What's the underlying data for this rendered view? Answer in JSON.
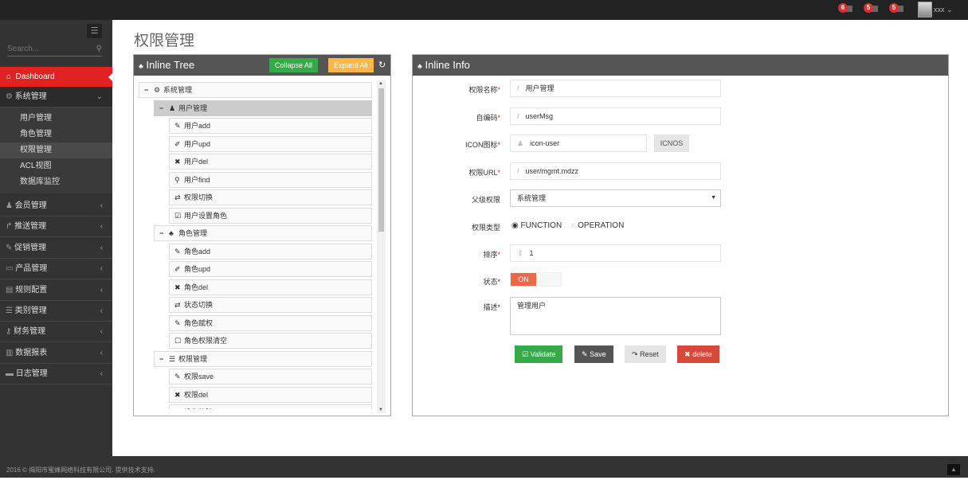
{
  "topbar": {
    "badges": [
      {
        "count": "6",
        "icon": "bell-icon"
      },
      {
        "count": "5",
        "icon": "envelope-icon"
      },
      {
        "count": "5",
        "icon": "tasks-icon"
      }
    ],
    "user": "xxx"
  },
  "sidebar": {
    "search_placeholder": "Search...",
    "dashboard": "Dashboard",
    "system": {
      "label": "系统管理",
      "icon": "cogs-icon",
      "children": [
        "用户管理",
        "角色管理",
        "权限管理",
        "ACL视图",
        "数据库监控"
      ],
      "active": "权限管理"
    },
    "menus": [
      {
        "label": "会员管理",
        "icon": "user-icon"
      },
      {
        "label": "推送管理",
        "icon": "share-icon"
      },
      {
        "label": "促销管理",
        "icon": "pencil-icon"
      },
      {
        "label": "产品管理",
        "icon": "inbox-icon"
      },
      {
        "label": "规则配置",
        "icon": "list-alt-icon"
      },
      {
        "label": "类别管理",
        "icon": "list-icon"
      },
      {
        "label": "财务管理",
        "icon": "key-icon"
      },
      {
        "label": "数据报表",
        "icon": "bar-chart-icon"
      },
      {
        "label": "日志管理",
        "icon": "credit-card-icon"
      }
    ]
  },
  "page": {
    "title": "权限管理"
  },
  "tree_panel": {
    "title": "Inline Tree",
    "collapse": "Collapse All",
    "expand": "Expand All",
    "nodes": [
      {
        "level": 0,
        "label": "系统管理",
        "icon": "cogs-icon",
        "toggle": "−"
      },
      {
        "level": 1,
        "label": "用户管理",
        "icon": "user-icon",
        "toggle": "−",
        "selected": true
      },
      {
        "level": 2,
        "label": "用户add",
        "icon": "pencil-icon"
      },
      {
        "level": 2,
        "label": "用户upd",
        "icon": "edit-icon"
      },
      {
        "level": 2,
        "label": "用户del",
        "icon": "times-icon"
      },
      {
        "level": 2,
        "label": "用户find",
        "icon": "search-icon"
      },
      {
        "level": 2,
        "label": "权限切换",
        "icon": "retweet-icon"
      },
      {
        "level": 2,
        "label": "用户设置角色",
        "icon": "check-square-icon"
      },
      {
        "level": 1,
        "label": "角色管理",
        "icon": "sitemap-icon",
        "toggle": "−"
      },
      {
        "level": 2,
        "label": "角色add",
        "icon": "pencil-icon"
      },
      {
        "level": 2,
        "label": "角色upd",
        "icon": "edit-icon"
      },
      {
        "level": 2,
        "label": "角色del",
        "icon": "times-icon"
      },
      {
        "level": 2,
        "label": "状态切换",
        "icon": "retweet-icon"
      },
      {
        "level": 2,
        "label": "角色赋权",
        "icon": "pencil-icon"
      },
      {
        "level": 2,
        "label": "角色权限清空",
        "icon": "square-icon"
      },
      {
        "level": 1,
        "label": "权限管理",
        "icon": "list-icon",
        "toggle": "−"
      },
      {
        "level": 2,
        "label": "权限save",
        "icon": "pencil-icon"
      },
      {
        "level": 2,
        "label": "权限del",
        "icon": "times-icon"
      },
      {
        "level": 2,
        "label": "操作校验",
        "icon": "edit-icon"
      }
    ]
  },
  "info_panel": {
    "title": "Inline Info",
    "fields": {
      "name": {
        "label": "权限名称",
        "value": "用户管理"
      },
      "code": {
        "label": "自编码",
        "value": "userMsg"
      },
      "icon": {
        "label": "ICON图标",
        "value": "icon-user",
        "button": "ICNOS"
      },
      "url": {
        "label": "权限URL",
        "value": "user/mgmt.mdzz"
      },
      "parent": {
        "label": "父级权限",
        "value": "系统管理"
      },
      "type": {
        "label": "权限类型",
        "options": [
          "FUNCTION",
          "OPERATION"
        ],
        "selected": "FUNCTION"
      },
      "order": {
        "label": "排序",
        "value": "1"
      },
      "status": {
        "label": "状态",
        "value": "ON"
      },
      "desc": {
        "label": "描述",
        "value": "管理用户"
      }
    },
    "buttons": {
      "validate": "Validate",
      "save": "Save",
      "reset": "Reset",
      "delete": "delete"
    }
  },
  "footer": {
    "text": "2016 © 揭阳市蜜蜂网络科技有限公司. 提供技术支持."
  },
  "colors": {
    "accent": "#e02222",
    "green": "#35aa47",
    "orange": "#ffb848",
    "dark": "#555555"
  }
}
